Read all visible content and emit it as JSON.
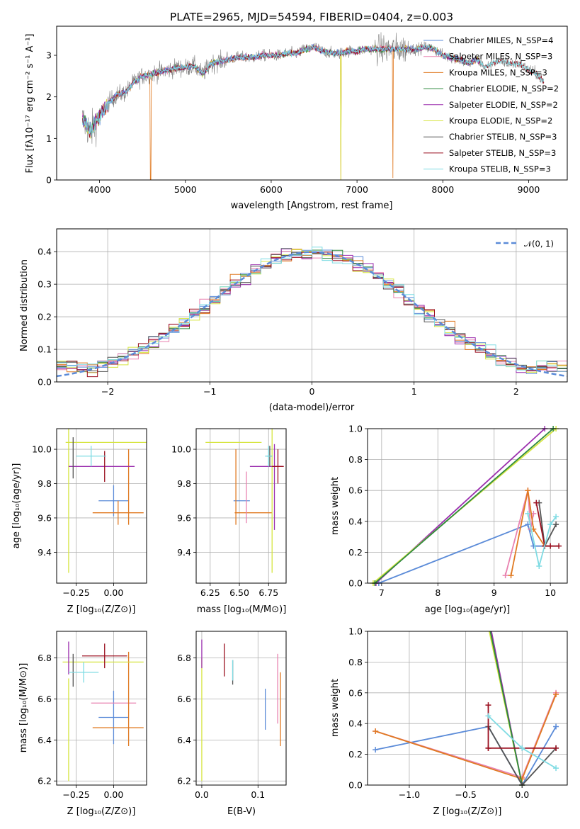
{
  "colors": {
    "Chabrier MILES": "#5b8bd8",
    "Salpeter MILES": "#e982b0",
    "Kroupa MILES": "#e07a22",
    "Chabrier ELODIE": "#2e8a3e",
    "Salpeter ELODIE": "#9b2fae",
    "Kroupa ELODIE": "#d6e540",
    "Chabrier STELIB": "#555555",
    "Salpeter STELIB": "#9b1020",
    "Kroupa STELIB": "#7fdbe3",
    "normal": "#5b8bd8"
  },
  "chart_data": [
    {
      "id": "spectrum",
      "type": "line",
      "title": "PLATE=2965, MJD=54594, FIBERID=0404, z=0.003",
      "xlabel": "wavelength [Angstrom, rest frame]",
      "ylabel": "Flux [fλ10⁻¹⁷ erg cm⁻² s⁻¹ A⁻¹]",
      "xlim": [
        3500,
        9450
      ],
      "ylim": [
        0,
        3.7
      ],
      "xticks": [
        "4000",
        "5000",
        "6000",
        "7000",
        "8000",
        "9000"
      ],
      "yticks": [
        "0",
        "1",
        "2",
        "3"
      ],
      "grid": false,
      "legend_position": "upper-right",
      "legend": [
        "Chabrier MILES, N_SSP=4",
        "Salpeter MILES, N_SSP=3",
        "Kroupa MILES, N_SSP=3",
        "Chabrier ELODIE, N_SSP=2",
        "Salpeter ELODIE, N_SSP=2",
        "Kroupa ELODIE, N_SSP=2",
        "Chabrier STELIB, N_SSP=3",
        "Salpeter STELIB, N_SSP=3",
        "Kroupa STELIB, N_SSP=3"
      ],
      "continuum": [
        [
          3800,
          1.45
        ],
        [
          3900,
          1.15
        ],
        [
          4000,
          1.55
        ],
        [
          4100,
          1.85
        ],
        [
          4200,
          2.05
        ],
        [
          4300,
          2.1
        ],
        [
          4400,
          2.35
        ],
        [
          4500,
          2.5
        ],
        [
          4600,
          2.55
        ],
        [
          4700,
          2.6
        ],
        [
          4800,
          2.65
        ],
        [
          4900,
          2.7
        ],
        [
          5000,
          2.7
        ],
        [
          5100,
          2.75
        ],
        [
          5200,
          2.55
        ],
        [
          5300,
          2.8
        ],
        [
          5400,
          2.85
        ],
        [
          5500,
          2.9
        ],
        [
          5600,
          2.95
        ],
        [
          5700,
          2.95
        ],
        [
          5800,
          2.95
        ],
        [
          5900,
          3.0
        ],
        [
          6000,
          3.0
        ],
        [
          6100,
          3.0
        ],
        [
          6200,
          3.05
        ],
        [
          6300,
          3.05
        ],
        [
          6400,
          3.15
        ],
        [
          6500,
          3.2
        ],
        [
          6600,
          3.1
        ],
        [
          6700,
          3.05
        ],
        [
          6800,
          3.05
        ],
        [
          6900,
          3.1
        ],
        [
          7000,
          3.1
        ],
        [
          7100,
          3.15
        ],
        [
          7200,
          3.15
        ],
        [
          7300,
          3.15
        ],
        [
          7400,
          3.15
        ],
        [
          7500,
          3.15
        ],
        [
          7600,
          3.15
        ],
        [
          7700,
          3.15
        ],
        [
          7800,
          3.2
        ],
        [
          7900,
          3.15
        ],
        [
          8000,
          3.0
        ],
        [
          8100,
          2.95
        ],
        [
          8200,
          2.9
        ],
        [
          8300,
          2.8
        ],
        [
          8400,
          2.9
        ],
        [
          8500,
          2.7
        ],
        [
          8600,
          2.85
        ],
        [
          8700,
          2.85
        ],
        [
          8800,
          2.8
        ],
        [
          8900,
          2.8
        ],
        [
          9000,
          2.65
        ],
        [
          9100,
          2.55
        ],
        [
          9180,
          2.35
        ]
      ],
      "absorption_features": [
        [
          4595,
          0.0
        ],
        [
          6810,
          0.0
        ],
        [
          7420,
          0.05
        ]
      ]
    },
    {
      "id": "residuals",
      "type": "histogram",
      "xlabel": "(data-model)/error",
      "ylabel": "Normed distribution",
      "xlim": [
        -2.5,
        2.5
      ],
      "ylim": [
        0,
        0.47
      ],
      "xticks": [
        "−2",
        "−1",
        "0",
        "1",
        "2"
      ],
      "yticks": [
        "0.0",
        "0.1",
        "0.2",
        "0.3",
        "0.4"
      ],
      "grid": true,
      "legend_position": "upper-right",
      "legend": [
        "𝒩(0, 1)"
      ],
      "bin_width": 0.1
    },
    {
      "id": "age-Z",
      "type": "scatter",
      "xlabel": "Z [log₁₀(Z/Z⊙)]",
      "ylabel": "age  [log₁₀(age/yr)]",
      "xlim": [
        -0.38,
        0.22
      ],
      "ylim": [
        9.22,
        10.12
      ],
      "xticks": [
        "−0.25",
        "0.00"
      ],
      "yticks": [
        "9.4",
        "9.6",
        "9.8",
        "10.0"
      ],
      "grid": true,
      "points": [
        {
          "series": "Chabrier MILES",
          "x": 0.0,
          "y": 9.7,
          "ex": 0.1,
          "ey": 0.09
        },
        {
          "series": "Kroupa MILES",
          "x": 0.03,
          "y": 9.63,
          "ex": 0.17,
          "ey": 0.07
        },
        {
          "series": "Kroupa MILES",
          "x": 0.1,
          "y": 9.78,
          "ex": 0.0,
          "ey": 0.22
        },
        {
          "series": "Kroupa ELODIE",
          "x": -0.05,
          "y": 10.04,
          "ex": 0.27,
          "ey": 0.0
        },
        {
          "series": "Kroupa ELODIE",
          "x": -0.3,
          "y": 9.8,
          "ex": 0.0,
          "ey": 0.52
        },
        {
          "series": "Salpeter ELODIE",
          "x": -0.08,
          "y": 9.9,
          "ex": 0.22,
          "ey": 0.0
        },
        {
          "series": "Chabrier STELIB",
          "x": -0.27,
          "y": 9.95,
          "ex": 0.0,
          "ey": 0.12
        },
        {
          "series": "Salpeter STELIB",
          "x": -0.06,
          "y": 9.9,
          "ex": 0.0,
          "ey": 0.09
        },
        {
          "series": "Kroupa STELIB",
          "x": -0.15,
          "y": 9.96,
          "ex": 0.1,
          "ey": 0.06
        }
      ]
    },
    {
      "id": "age-mass",
      "type": "scatter",
      "xlabel": "mass [log₁₀(M/M⊙)]",
      "xlim": [
        6.13,
        6.9
      ],
      "ylim": [
        9.22,
        10.12
      ],
      "xticks": [
        "6.25",
        "6.50",
        "6.75"
      ],
      "yticks": [
        "9.4",
        "9.6",
        "9.8",
        "10.0"
      ],
      "grid": true,
      "points": [
        {
          "series": "Chabrier MILES",
          "x": 6.52,
          "y": 9.7,
          "ex": 0.07,
          "ey": 0.0
        },
        {
          "series": "Kroupa MILES",
          "x": 6.62,
          "y": 9.63,
          "ex": 0.16,
          "ey": 0.0
        },
        {
          "series": "Kroupa MILES",
          "x": 6.47,
          "y": 9.78,
          "ex": 0.0,
          "ey": 0.22
        },
        {
          "series": "Salpeter MILES",
          "x": 6.56,
          "y": 9.72,
          "ex": 0.0,
          "ey": 0.15
        },
        {
          "series": "Kroupa ELODIE",
          "x": 6.45,
          "y": 10.04,
          "ex": 0.24,
          "ey": 0.0
        },
        {
          "series": "Kroupa ELODIE",
          "x": 6.78,
          "y": 9.8,
          "ex": 0.0,
          "ey": 0.52
        },
        {
          "series": "Salpeter ELODIE",
          "x": 6.73,
          "y": 9.9,
          "ex": 0.14,
          "ey": 0.0
        },
        {
          "series": "Salpeter ELODIE",
          "x": 6.8,
          "y": 9.78,
          "ex": 0.0,
          "ey": 0.25
        },
        {
          "series": "Salpeter STELIB",
          "x": 6.83,
          "y": 9.9,
          "ex": 0.05,
          "ey": 0.1
        },
        {
          "series": "Chabrier STELIB",
          "x": 6.76,
          "y": 9.96,
          "ex": 0.02,
          "ey": 0.06
        },
        {
          "series": "Kroupa STELIB",
          "x": 6.75,
          "y": 9.96,
          "ex": 0.03,
          "ey": 0.06
        }
      ]
    },
    {
      "id": "weight-age",
      "type": "line",
      "xlabel": "age  [log₁₀(age/yr)]",
      "ylabel": "mass weight",
      "xlim": [
        6.75,
        10.3
      ],
      "ylim": [
        0,
        1
      ],
      "xticks": [
        "7",
        "8",
        "9",
        "10"
      ],
      "yticks": [
        "0.0",
        "0.2",
        "0.4",
        "0.6",
        "0.8",
        "1.0"
      ],
      "grid": true,
      "series": [
        {
          "name": "Chabrier MILES",
          "x": [
            6.95,
            9.6,
            9.7,
            9.9
          ],
          "y": [
            0.0,
            0.38,
            0.24,
            0.24
          ]
        },
        {
          "name": "Salpeter MILES",
          "x": [
            9.2,
            9.6,
            9.65,
            9.7
          ],
          "y": [
            0.05,
            0.6,
            0.35,
            0.45
          ]
        },
        {
          "name": "Kroupa MILES",
          "x": [
            9.3,
            9.6,
            9.7,
            9.9
          ],
          "y": [
            0.05,
            0.6,
            0.35,
            0.24
          ]
        },
        {
          "name": "Salpeter ELODIE",
          "x": [
            6.9,
            9.9
          ],
          "y": [
            0.0,
            1.0
          ]
        },
        {
          "name": "Kroupa ELODIE",
          "x": [
            6.85,
            10.1
          ],
          "y": [
            0.0,
            1.0
          ]
        },
        {
          "name": "Chabrier ELODIE",
          "x": [
            6.88,
            10.05
          ],
          "y": [
            0.0,
            1.0
          ]
        },
        {
          "name": "Chabrier STELIB",
          "x": [
            9.8,
            9.9,
            10.1
          ],
          "y": [
            0.52,
            0.24,
            0.38
          ]
        },
        {
          "name": "Salpeter STELIB",
          "x": [
            9.75,
            9.9,
            10.0,
            10.15
          ],
          "y": [
            0.52,
            0.24,
            0.24,
            0.24
          ]
        },
        {
          "name": "Kroupa STELIB",
          "x": [
            9.6,
            9.8,
            10.0,
            10.1
          ],
          "y": [
            0.45,
            0.11,
            0.38,
            0.43
          ]
        }
      ]
    },
    {
      "id": "mass-Z",
      "type": "scatter",
      "xlabel": "Z [log₁₀(Z/Z⊙)]",
      "ylabel": "mass [log₁₀(M/M⊙)]",
      "xlim": [
        -0.38,
        0.22
      ],
      "ylim": [
        6.18,
        6.93
      ],
      "xticks": [
        "−0.25",
        "0.00"
      ],
      "yticks": [
        "6.2",
        "6.4",
        "6.6",
        "6.8"
      ],
      "grid": true,
      "points": [
        {
          "series": "Chabrier MILES",
          "x": 0.0,
          "y": 6.51,
          "ex": 0.1,
          "ey": 0.13
        },
        {
          "series": "Salpeter MILES",
          "x": 0.0,
          "y": 6.58,
          "ex": 0.15,
          "ey": 0.0
        },
        {
          "series": "Kroupa MILES",
          "x": 0.03,
          "y": 6.46,
          "ex": 0.17,
          "ey": 0.0
        },
        {
          "series": "Kroupa MILES",
          "x": 0.1,
          "y": 6.6,
          "ex": 0.0,
          "ey": 0.23
        },
        {
          "series": "Kroupa ELODIE",
          "x": -0.07,
          "y": 6.78,
          "ex": 0.27,
          "ey": 0.0
        },
        {
          "series": "Kroupa ELODIE",
          "x": -0.3,
          "y": 6.45,
          "ex": 0.0,
          "ey": 0.25
        },
        {
          "series": "Salpeter ELODIE",
          "x": -0.3,
          "y": 6.8,
          "ex": 0.0,
          "ey": 0.08
        },
        {
          "series": "Chabrier STELIB",
          "x": -0.27,
          "y": 6.74,
          "ex": 0.0,
          "ey": 0.08
        },
        {
          "series": "Salpeter STELIB",
          "x": -0.06,
          "y": 6.81,
          "ex": 0.15,
          "ey": 0.06
        },
        {
          "series": "Kroupa STELIB",
          "x": -0.2,
          "y": 6.73,
          "ex": 0.1,
          "ey": 0.05
        }
      ]
    },
    {
      "id": "mass-EBV",
      "type": "scatter",
      "xlabel": "E(B-V)",
      "xlim": [
        -0.01,
        0.15
      ],
      "ylim": [
        6.18,
        6.93
      ],
      "xticks": [
        "0.0",
        "0.1"
      ],
      "yticks": [
        "6.2",
        "6.4",
        "6.6",
        "6.8"
      ],
      "grid": true,
      "points": [
        {
          "series": "Kroupa ELODIE",
          "x": 0.0,
          "y": 6.5,
          "ex": 0.0,
          "ey": 0.3
        },
        {
          "series": "Salpeter ELODIE",
          "x": 0.0,
          "y": 6.82,
          "ex": 0.0,
          "ey": 0.07
        },
        {
          "series": "Salpeter STELIB",
          "x": 0.04,
          "y": 6.79,
          "ex": 0.0,
          "ey": 0.08
        },
        {
          "series": "Chabrier STELIB",
          "x": 0.055,
          "y": 6.73,
          "ex": 0.0,
          "ey": 0.06
        },
        {
          "series": "Kroupa STELIB",
          "x": 0.055,
          "y": 6.74,
          "ex": 0.0,
          "ey": 0.05
        },
        {
          "series": "Chabrier MILES",
          "x": 0.113,
          "y": 6.55,
          "ex": 0.0,
          "ey": 0.1
        },
        {
          "series": "Salpeter MILES",
          "x": 0.135,
          "y": 6.65,
          "ex": 0.0,
          "ey": 0.17
        },
        {
          "series": "Kroupa MILES",
          "x": 0.14,
          "y": 6.55,
          "ex": 0.0,
          "ey": 0.18
        }
      ]
    },
    {
      "id": "weight-Z",
      "type": "line",
      "xlabel": "Z [log₁₀(Z/Z⊙)]",
      "ylabel": "mass weight",
      "xlim": [
        -1.37,
        0.4
      ],
      "ylim": [
        0,
        1
      ],
      "xticks": [
        "−1.0",
        "−0.5",
        "0.0"
      ],
      "yticks": [
        "0.0",
        "0.2",
        "0.4",
        "0.6",
        "0.8",
        "1.0"
      ],
      "grid": true,
      "series": [
        {
          "name": "Chabrier MILES",
          "x": [
            -1.3,
            -0.3,
            0.0,
            0.3
          ],
          "y": [
            0.23,
            0.38,
            0.0,
            0.38
          ]
        },
        {
          "name": "Salpeter MILES",
          "x": [
            -1.3,
            0.0,
            0.3
          ],
          "y": [
            0.35,
            0.05,
            0.6
          ]
        },
        {
          "name": "Kroupa MILES",
          "x": [
            -1.3,
            0.0,
            0.3
          ],
          "y": [
            0.35,
            0.04,
            0.59
          ]
        },
        {
          "name": "Salpeter ELODIE",
          "x": [
            -0.3,
            0.0
          ],
          "y": [
            1.1,
            0.0
          ]
        },
        {
          "name": "Kroupa ELODIE",
          "x": [
            -0.32,
            0.0
          ],
          "y": [
            1.1,
            0.0
          ]
        },
        {
          "name": "Chabrier ELODIE",
          "x": [
            -0.31,
            0.0
          ],
          "y": [
            1.1,
            0.0
          ]
        },
        {
          "name": "Chabrier STELIB",
          "x": [
            -0.3,
            0.0,
            0.3
          ],
          "y": [
            0.38,
            0.0,
            0.24
          ]
        },
        {
          "name": "Salpeter STELIB",
          "x": [
            -0.3,
            -0.3,
            0.0,
            -0.3,
            0.3
          ],
          "y": [
            0.52,
            0.24,
            0.24,
            0.24,
            0.24
          ]
        },
        {
          "name": "Kroupa STELIB",
          "x": [
            -0.3,
            0.0,
            0.3
          ],
          "y": [
            0.45,
            0.24,
            0.11
          ]
        }
      ]
    }
  ]
}
